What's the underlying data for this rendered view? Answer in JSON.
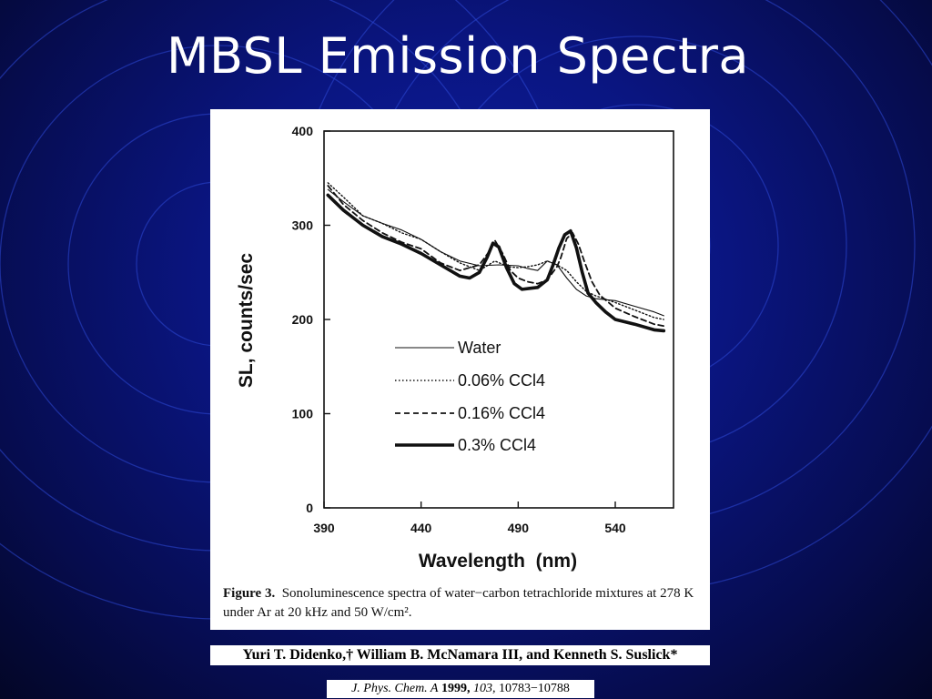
{
  "slide": {
    "title": "MBSL Emission Spectra"
  },
  "chart_data": {
    "type": "line",
    "xlabel": "Wavelength  (nm)",
    "ylabel": "SL, counts/sec",
    "xlim": [
      390,
      570
    ],
    "ylim": [
      0,
      400
    ],
    "x_ticks": [
      "390",
      "440",
      "490",
      "540"
    ],
    "y_ticks": [
      "0",
      "100",
      "200",
      "300",
      "400"
    ],
    "legend_position": "center-right",
    "grid": false,
    "series": [
      {
        "name": "Water",
        "style": "solid-thin",
        "x": [
          392,
          400,
          410,
          420,
          430,
          440,
          450,
          460,
          470,
          480,
          490,
          495,
          500,
          505,
          510,
          515,
          520,
          525,
          530,
          540,
          550,
          560,
          565
        ],
        "y": [
          338,
          325,
          310,
          302,
          295,
          285,
          272,
          262,
          257,
          258,
          257,
          254,
          252,
          262,
          258,
          244,
          232,
          225,
          222,
          220,
          214,
          208,
          204
        ]
      },
      {
        "name": "0.06% CCl4",
        "style": "dotted",
        "x": [
          392,
          400,
          410,
          420,
          430,
          440,
          450,
          460,
          470,
          478,
          485,
          490,
          495,
          500,
          505,
          510,
          515,
          520,
          525,
          530,
          540,
          550,
          560,
          565
        ],
        "y": [
          345,
          330,
          310,
          302,
          292,
          285,
          272,
          260,
          252,
          262,
          256,
          255,
          256,
          258,
          262,
          258,
          252,
          240,
          230,
          225,
          218,
          210,
          202,
          200
        ]
      },
      {
        "name": "0.16% CCl4",
        "style": "dashed",
        "x": [
          392,
          400,
          410,
          420,
          430,
          440,
          450,
          460,
          470,
          475,
          478,
          482,
          486,
          490,
          495,
          500,
          505,
          510,
          512,
          515,
          518,
          521,
          524,
          528,
          532,
          540,
          550,
          560,
          565
        ],
        "y": [
          342,
          322,
          305,
          292,
          282,
          275,
          260,
          252,
          258,
          272,
          284,
          270,
          252,
          244,
          240,
          238,
          242,
          256,
          266,
          286,
          292,
          280,
          262,
          240,
          226,
          212,
          203,
          195,
          193
        ]
      },
      {
        "name": "0.3% CCl4",
        "style": "solid-thick",
        "x": [
          392,
          400,
          410,
          420,
          430,
          440,
          450,
          460,
          465,
          470,
          474,
          477,
          480,
          484,
          488,
          492,
          496,
          500,
          505,
          508,
          511,
          514,
          517,
          520,
          523,
          526,
          530,
          535,
          540,
          550,
          560,
          565
        ],
        "y": [
          332,
          316,
          300,
          288,
          280,
          270,
          258,
          246,
          244,
          250,
          266,
          281,
          277,
          255,
          238,
          232,
          233,
          234,
          242,
          258,
          276,
          290,
          294,
          276,
          250,
          228,
          218,
          208,
          200,
          195,
          189,
          188
        ]
      }
    ]
  },
  "figure": {
    "caption_label": "Figure 3.",
    "caption_text": "Sonoluminescence spectra of water−carbon tetrachloride mixtures at 278 K under Ar at 20 kHz and 50 W/cm²."
  },
  "authors": "Yuri T. Didenko,† William B. McNamara III, and Kenneth S. Suslick*",
  "journal": {
    "name": "J. Phys. Chem. A",
    "year": "1999,",
    "volume": "103,",
    "pages": "10783−10788"
  }
}
